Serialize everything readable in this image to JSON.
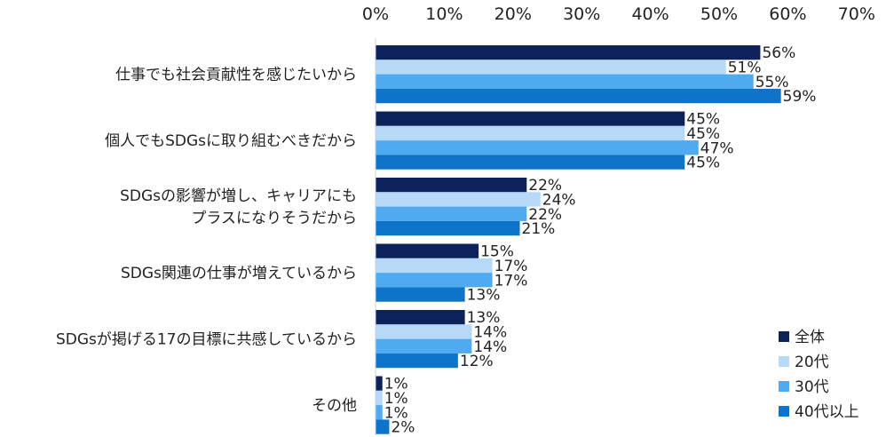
{
  "chart_data": {
    "type": "bar",
    "orientation": "horizontal",
    "title": "",
    "xlabel": "",
    "ylabel": "",
    "xlim": [
      0,
      70
    ],
    "ticks": [
      "0%",
      "10%",
      "20%",
      "30%",
      "40%",
      "50%",
      "60%",
      "70%"
    ],
    "tick_values": [
      0,
      10,
      20,
      30,
      40,
      50,
      60,
      70
    ],
    "grid": false,
    "legend_position": "bottom-right",
    "categories": [
      [
        "仕事でも社会貢献性を感じたいから"
      ],
      [
        "個人でもSDGsに取り組むべきだから"
      ],
      [
        "SDGsの影響が増し、キャリアにも",
        "プラスになりそうだから"
      ],
      [
        "SDGs関連の仕事が増えているから"
      ],
      [
        "SDGsが掲げる17の目標に共感しているから"
      ],
      [
        "その他"
      ]
    ],
    "series": [
      {
        "name": "全体",
        "color": "#0d2259",
        "values": [
          56,
          45,
          22,
          15,
          13,
          1
        ]
      },
      {
        "name": "20代",
        "color": "#b6d9f7",
        "values": [
          51,
          45,
          24,
          17,
          14,
          1
        ]
      },
      {
        "name": "30代",
        "color": "#4faaf0",
        "values": [
          55,
          47,
          22,
          17,
          14,
          1
        ]
      },
      {
        "name": "40代以上",
        "color": "#0e74c9",
        "values": [
          59,
          45,
          21,
          13,
          12,
          2
        ]
      }
    ],
    "value_suffix": "%"
  }
}
